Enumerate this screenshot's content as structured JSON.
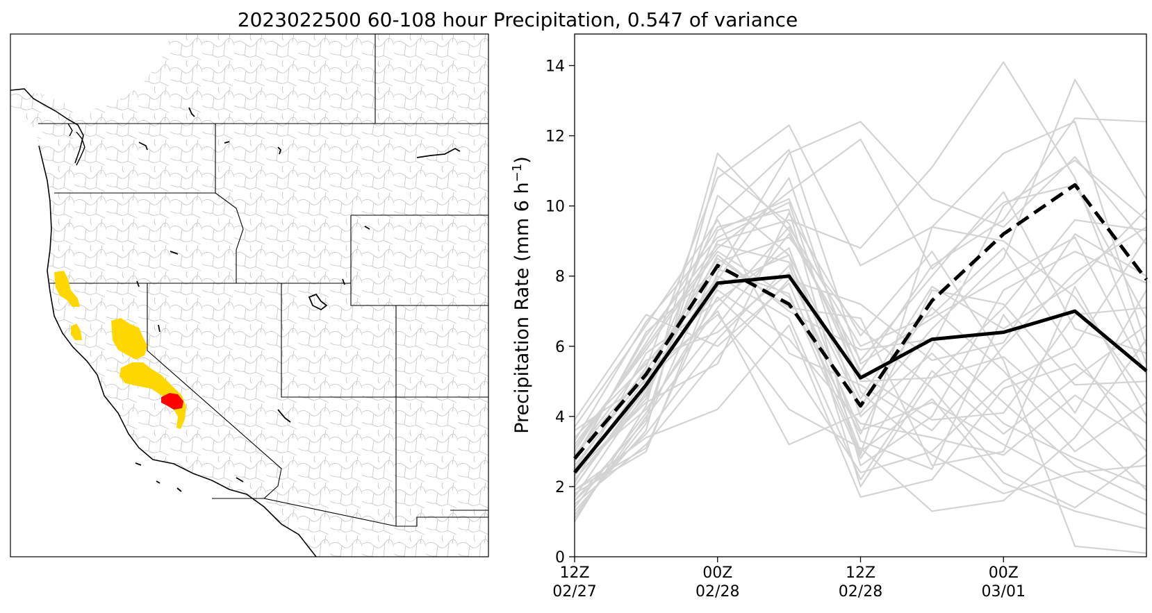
{
  "title": "2023022500 60-108 hour Precipitation, 0.547 of variance",
  "map": {
    "highlight_colors": {
      "high": "#ff0000",
      "medium": "#ffd700"
    },
    "basin_line_color": "#c8c8c8",
    "state_line_color": "#000000"
  },
  "chart_data": {
    "type": "line",
    "ylabel": "Precipitation Rate (mm 6 h",
    "ylabel_superscript": "−1",
    "ylabel_close": ")",
    "ylim": [
      0,
      14.9
    ],
    "xlim": [
      0,
      8
    ],
    "y_ticks": [
      "0",
      "2",
      "4",
      "6",
      "8",
      "10",
      "12",
      "14"
    ],
    "x_ticks": [
      {
        "x": 0,
        "line1": "12Z",
        "line2": "02/27"
      },
      {
        "x": 2,
        "line1": "00Z",
        "line2": "02/28"
      },
      {
        "x": 4,
        "line1": "12Z",
        "line2": "02/28"
      },
      {
        "x": 6,
        "line1": "00Z",
        "line2": "03/01"
      }
    ],
    "grid": false,
    "series": [
      {
        "style": "solid-black",
        "values": [
          2.4,
          4.9,
          7.8,
          8.0,
          5.1,
          6.2,
          6.4,
          7.0,
          5.3
        ]
      },
      {
        "style": "dashed-black",
        "values": [
          2.8,
          5.2,
          8.3,
          7.2,
          4.3,
          7.3,
          9.2,
          10.6,
          7.9
        ]
      }
    ],
    "members_color": "#d3d3d3",
    "members": [
      [
        1.0,
        4.3,
        11.5,
        9.3,
        5.3,
        8.3,
        9.6,
        12.5,
        12.4
      ],
      [
        1.3,
        3.6,
        11.1,
        9.5,
        5.0,
        5.1,
        7.1,
        9.6,
        9.3
      ],
      [
        1.6,
        3.9,
        10.3,
        8.6,
        4.5,
        7.7,
        6.5,
        7.8,
        9.9
      ],
      [
        2.0,
        4.9,
        9.7,
        11.6,
        5.5,
        6.8,
        8.0,
        9.1,
        5.2
      ],
      [
        2.5,
        5.4,
        10.8,
        12.3,
        8.3,
        9.4,
        11.5,
        12.4,
        6.0
      ],
      [
        3.1,
        6.0,
        8.8,
        10.4,
        11.9,
        8.2,
        10.1,
        10.6,
        6.8
      ],
      [
        1.8,
        3.0,
        8.1,
        11.5,
        12.4,
        10.2,
        9.4,
        11.4,
        8.9
      ],
      [
        2.2,
        4.6,
        9.0,
        9.6,
        8.8,
        11.1,
        14.1,
        10.8,
        5.5
      ],
      [
        3.6,
        5.0,
        7.0,
        3.2,
        4.1,
        6.5,
        8.5,
        13.6,
        10.2
      ],
      [
        2.7,
        6.4,
        8.2,
        7.5,
        2.8,
        6.0,
        10.0,
        11.3,
        9.6
      ],
      [
        1.4,
        4.1,
        7.4,
        5.5,
        2.4,
        3.0,
        5.0,
        6.0,
        9.1
      ],
      [
        2.9,
        5.6,
        6.4,
        8.1,
        3.6,
        4.4,
        3.2,
        2.1,
        1.2
      ],
      [
        1.9,
        3.4,
        4.2,
        6.6,
        1.7,
        2.2,
        4.8,
        5.5,
        3.8
      ],
      [
        3.3,
        6.7,
        9.1,
        10.1,
        4.0,
        5.8,
        3.8,
        2.8,
        2.0
      ],
      [
        2.4,
        4.4,
        5.5,
        9.8,
        6.3,
        8.7,
        5.6,
        0.3,
        0.1
      ],
      [
        2.1,
        5.8,
        7.3,
        8.8,
        3.3,
        2.5,
        6.9,
        4.1,
        7.6
      ],
      [
        3.9,
        6.9,
        6.0,
        7.8,
        2.9,
        9.4,
        9.0,
        7.4,
        4.5
      ],
      [
        1.2,
        3.8,
        8.4,
        9.1,
        6.5,
        4.8,
        2.4,
        1.4,
        2.9
      ],
      [
        2.6,
        5.2,
        6.9,
        4.2,
        3.1,
        1.3,
        1.6,
        3.4,
        6.2
      ],
      [
        1.7,
        4.7,
        8.6,
        7.0,
        5.9,
        6.2,
        4.4,
        2.6,
        1.6
      ],
      [
        3.0,
        6.1,
        9.4,
        9.9,
        2.6,
        4.0,
        7.6,
        8.7,
        7.8
      ],
      [
        2.3,
        5.1,
        7.6,
        6.2,
        3.8,
        3.4,
        2.9,
        4.6,
        3.3
      ],
      [
        1.5,
        3.2,
        5.7,
        7.9,
        7.2,
        5.6,
        6.1,
        9.2,
        8.0
      ],
      [
        2.8,
        6.3,
        8.9,
        8.4,
        4.3,
        7.1,
        5.3,
        3.0,
        4.4
      ],
      [
        3.4,
        5.5,
        7.9,
        10.8,
        4.7,
        2.9,
        1.8,
        2.4,
        2.6
      ],
      [
        1.1,
        4.0,
        6.6,
        9.2,
        5.6,
        8.0,
        10.4,
        6.5,
        5.8
      ],
      [
        2.0,
        4.8,
        8.0,
        6.8,
        2.2,
        5.3,
        3.5,
        5.1,
        6.6
      ],
      [
        3.7,
        6.6,
        9.6,
        5.8,
        4.9,
        3.6,
        6.0,
        8.1,
        9.4
      ],
      [
        2.5,
        4.2,
        7.1,
        9.4,
        6.0,
        6.9,
        8.8,
        5.8,
        3.0
      ],
      [
        1.6,
        3.5,
        6.2,
        8.3,
        3.0,
        4.5,
        2.1,
        1.3,
        0.8
      ],
      [
        3.2,
        5.9,
        8.7,
        7.4,
        3.5,
        7.6,
        7.2,
        4.9,
        5.0
      ],
      [
        2.2,
        4.5,
        9.3,
        10.2,
        5.2,
        3.9,
        4.1,
        6.9,
        7.1
      ],
      [
        1.9,
        3.1,
        7.7,
        8.6,
        2.0,
        5.1,
        5.7,
        3.9,
        1.9
      ],
      [
        2.9,
        5.3,
        8.5,
        7.1,
        6.8,
        2.6,
        3.0,
        7.7,
        4.0
      ]
    ]
  }
}
